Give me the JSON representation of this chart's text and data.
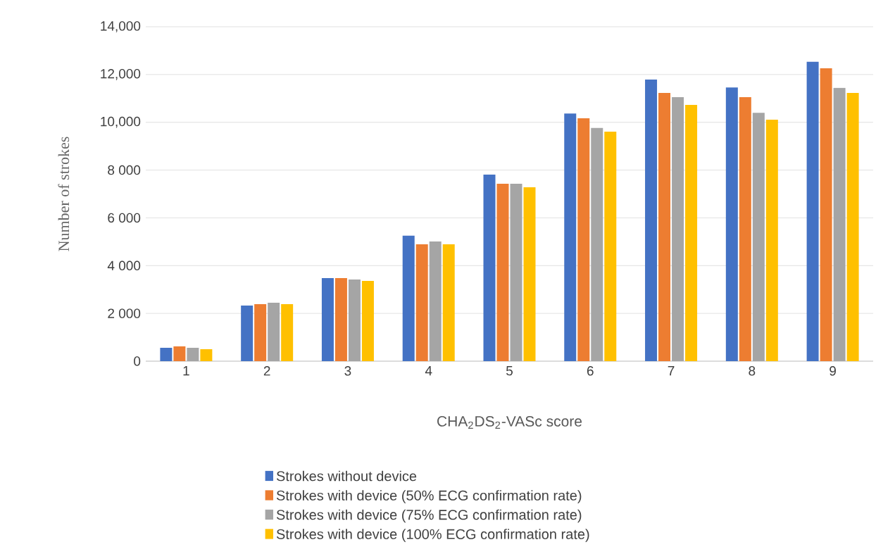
{
  "chart_data": {
    "type": "bar",
    "xlabel": "CHA$_{2}$DS$_{2}$-VASc score",
    "ylabel": "Number of strokes",
    "categories": [
      "1",
      "2",
      "3",
      "4",
      "5",
      "6",
      "7",
      "8",
      "9"
    ],
    "series": [
      {
        "name": "Strokes without device",
        "color": "#4472c4",
        "values": [
          560,
          2330,
          3480,
          5250,
          7810,
          10370,
          11790,
          11460,
          12530
        ]
      },
      {
        "name": "Strokes with device (50% ECG confirmation rate)",
        "color": "#ed7d31",
        "values": [
          620,
          2390,
          3480,
          4890,
          7430,
          10170,
          11230,
          11050,
          12260
        ]
      },
      {
        "name": "Strokes with device (75% ECG confirmation rate)",
        "color": "#a5a5a5",
        "values": [
          560,
          2450,
          3420,
          5010,
          7430,
          9760,
          11050,
          10400,
          11440
        ]
      },
      {
        "name": "Strokes with device (100% ECG confirmation rate)",
        "color": "#ffc000",
        "values": [
          500,
          2390,
          3360,
          4890,
          7280,
          9610,
          10730,
          10110,
          11230
        ]
      }
    ],
    "ylim": [
      0,
      14000
    ],
    "yticks": [
      {
        "value": 0,
        "label": "0"
      },
      {
        "value": 2000,
        "label": "2 000"
      },
      {
        "value": 4000,
        "label": "4 000"
      },
      {
        "value": 6000,
        "label": "6 000"
      },
      {
        "value": 8000,
        "label": "8 000"
      },
      {
        "value": 10000,
        "label": "10,000"
      },
      {
        "value": 12000,
        "label": "12,000"
      },
      {
        "value": 14000,
        "label": "14,000"
      }
    ],
    "grid": "y",
    "legend": "bottom"
  }
}
